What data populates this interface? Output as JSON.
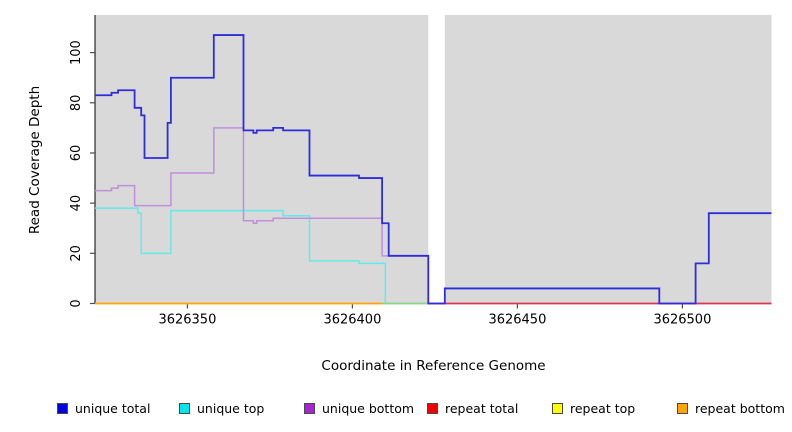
{
  "figure": {
    "panel_bg": "#d9d9d9",
    "axis_color": "#000000",
    "tick_color": "#4d4d4d"
  },
  "chart_data": {
    "type": "line",
    "step_mode": "post",
    "title": "",
    "xlabel": "Coordinate in Reference Genome",
    "ylabel": "Read Coverage Depth",
    "xlim": [
      3626322,
      3626527
    ],
    "ylim": [
      0,
      115
    ],
    "x_ticks": [
      "3626350",
      "3626400",
      "3626450",
      "3626500"
    ],
    "x_tick_values": [
      3626350,
      3626400,
      3626450,
      3626500
    ],
    "y_ticks": [
      "0",
      "20",
      "40",
      "60",
      "80",
      "100"
    ],
    "y_tick_values": [
      0,
      20,
      40,
      60,
      80,
      100
    ],
    "grid": false,
    "legend_position": "bottom",
    "gap_region": {
      "x_start": 3626423,
      "x_end": 3626428,
      "color": "#ffffff"
    },
    "series": [
      {
        "name": "repeat top",
        "color": "#ffff00",
        "swatch": "#ffff00",
        "in_legend": true,
        "width": 1.8,
        "points": [
          [
            3626322,
            0
          ],
          [
            3626409,
            0
          ]
        ]
      },
      {
        "name": "unique top",
        "color": "#63e9e9",
        "swatch": "#00e5ee",
        "in_legend": true,
        "width": 1.5,
        "points": [
          [
            3626322,
            38
          ],
          [
            3626335,
            36
          ],
          [
            3626336,
            20
          ],
          [
            3626345,
            37
          ],
          [
            3626379,
            35
          ],
          [
            3626387,
            17
          ],
          [
            3626402,
            16
          ],
          [
            3626410,
            0
          ],
          [
            3626423,
            0
          ]
        ]
      },
      {
        "name": "unique bottom",
        "color": "#c18ede",
        "swatch": "#a823d6",
        "in_legend": true,
        "width": 1.5,
        "points": [
          [
            3626322,
            45
          ],
          [
            3626327,
            46
          ],
          [
            3626329,
            47
          ],
          [
            3626334,
            39
          ],
          [
            3626345,
            52
          ],
          [
            3626358,
            70
          ],
          [
            3626367,
            33
          ],
          [
            3626370,
            32
          ],
          [
            3626371,
            33
          ],
          [
            3626376,
            34
          ],
          [
            3626409,
            19
          ],
          [
            3626423,
            0
          ]
        ]
      },
      {
        "name": "repeat bottom",
        "color": "#ffa11a",
        "swatch": "#ffa500",
        "in_legend": true,
        "width": 1.8,
        "points": [
          [
            3626322,
            0
          ],
          [
            3626409,
            0
          ]
        ]
      },
      {
        "name": "repeat top over unique top overlap",
        "color": "#8fd487",
        "swatch": "#8fd487",
        "in_legend": false,
        "width": 1.8,
        "points": [
          [
            3626409,
            0
          ],
          [
            3626423,
            0
          ]
        ]
      },
      {
        "name": "repeat total",
        "color": "#dc3550",
        "swatch": "#f00000",
        "in_legend": true,
        "width": 1.8,
        "points": [
          [
            3626423,
            0
          ],
          [
            3626527,
            0
          ]
        ]
      },
      {
        "name": "unique total",
        "color": "#2d2ddc",
        "swatch": "#0101dd",
        "in_legend": true,
        "width": 1.8,
        "points": [
          [
            3626322,
            83
          ],
          [
            3626327,
            84
          ],
          [
            3626329,
            85
          ],
          [
            3626334,
            78
          ],
          [
            3626336,
            75
          ],
          [
            3626337,
            58
          ],
          [
            3626344,
            72
          ],
          [
            3626345,
            90
          ],
          [
            3626358,
            107
          ],
          [
            3626367,
            69
          ],
          [
            3626370,
            68
          ],
          [
            3626371,
            69
          ],
          [
            3626376,
            70
          ],
          [
            3626379,
            69
          ],
          [
            3626387,
            51
          ],
          [
            3626402,
            50
          ],
          [
            3626409,
            32
          ],
          [
            3626411,
            19
          ],
          [
            3626423,
            0
          ],
          [
            3626428,
            6
          ],
          [
            3626493,
            0
          ],
          [
            3626504,
            16
          ],
          [
            3626508,
            36
          ],
          [
            3626527,
            36
          ]
        ]
      }
    ],
    "legend": [
      {
        "label": "unique total",
        "color": "#0101dd"
      },
      {
        "label": "unique top",
        "color": "#00e5ee"
      },
      {
        "label": "unique bottom",
        "color": "#a823d6"
      },
      {
        "label": "repeat total",
        "color": "#f00000"
      },
      {
        "label": "repeat top",
        "color": "#ffff00"
      },
      {
        "label": "repeat bottom",
        "color": "#ffa500"
      }
    ]
  }
}
